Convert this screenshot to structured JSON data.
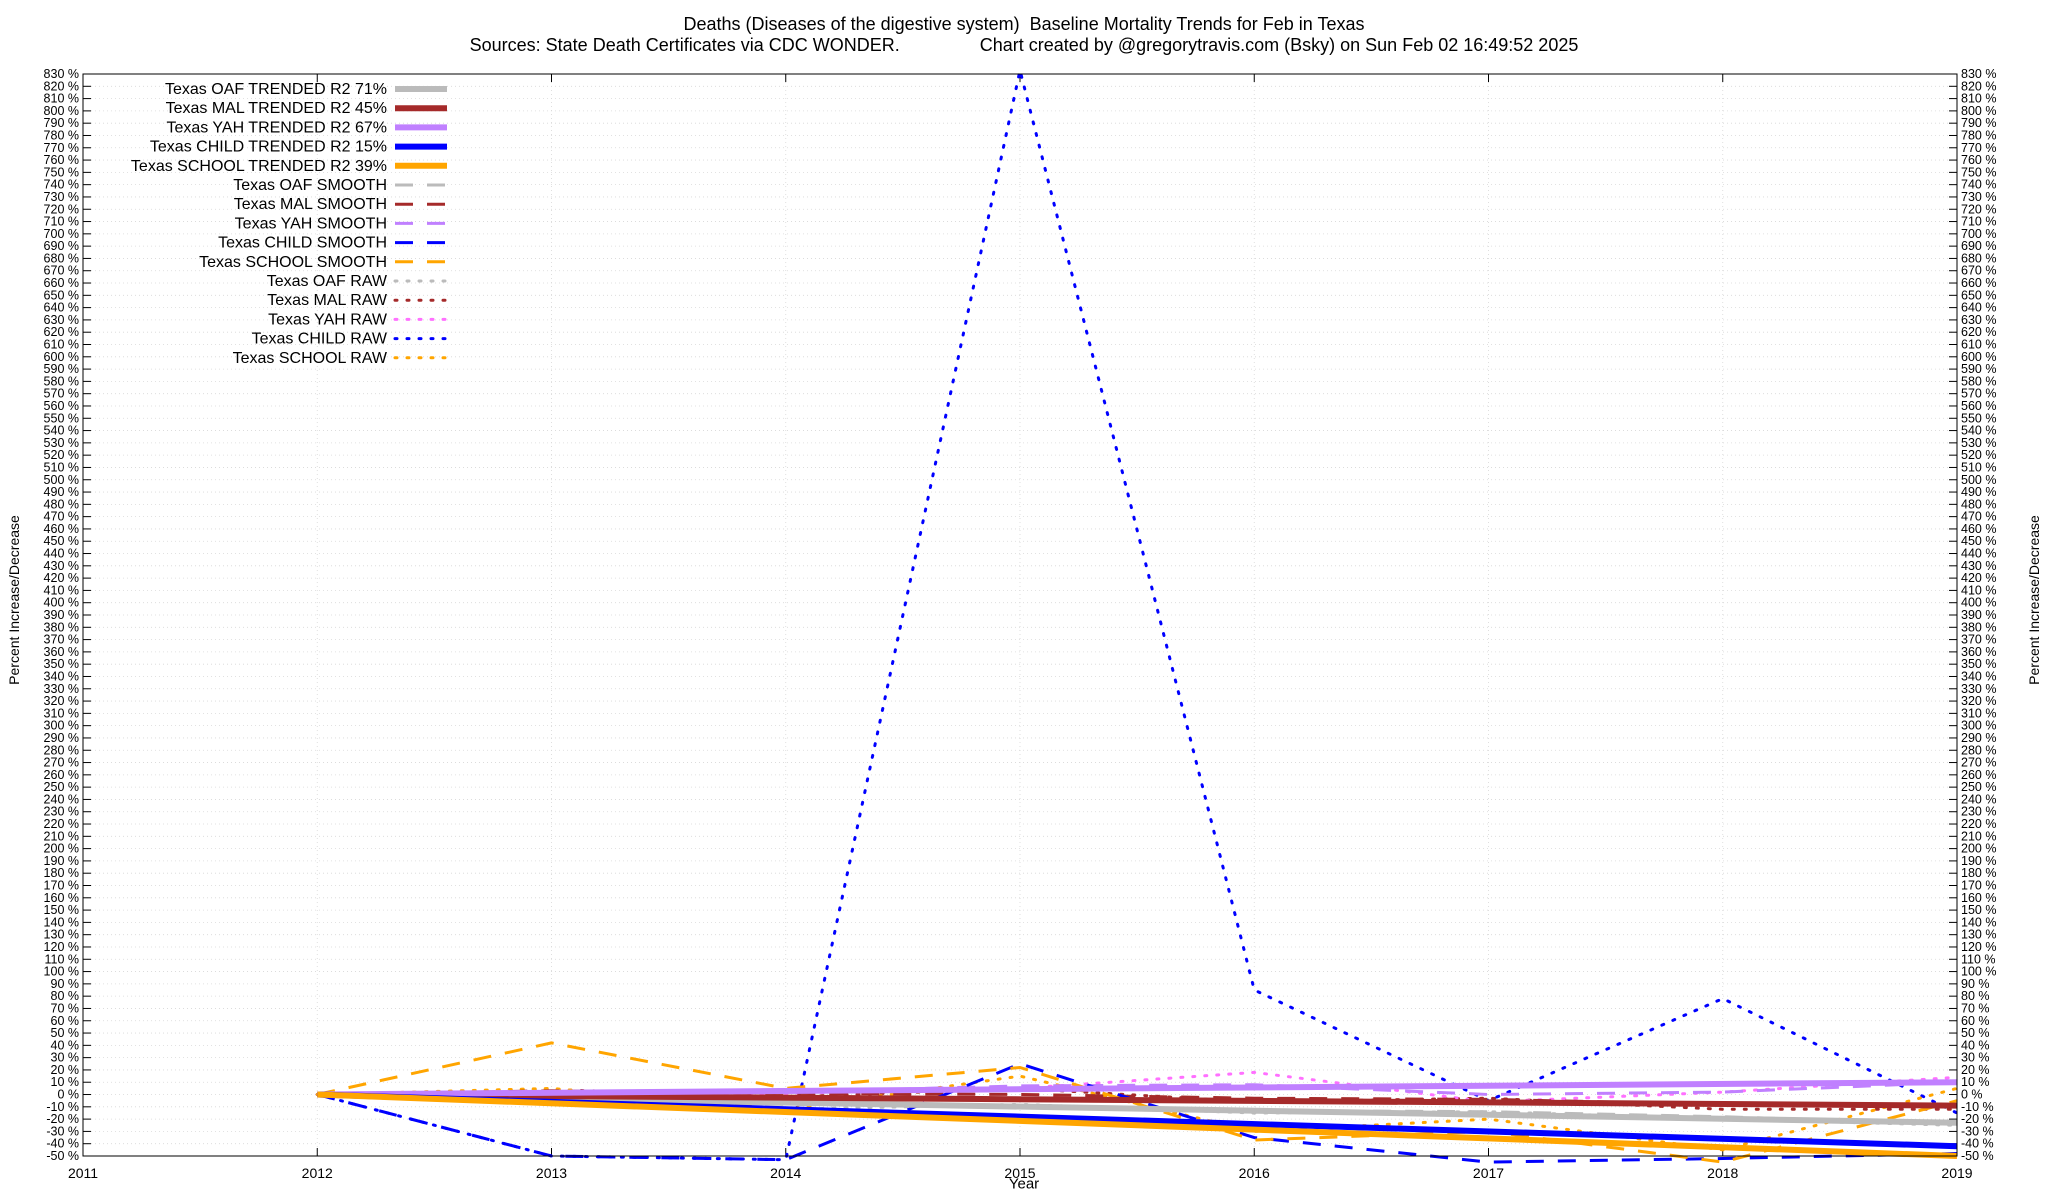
{
  "title": "Deaths (Diseases of the digestive system)  Baseline Mortality Trends for Feb in Texas",
  "subtitle": "Sources: State Death Certificates via CDC WONDER.                Chart created by @gregorytravis.com (Bsky) on Sun Feb 02 16:49:52 2025",
  "chart_data": {
    "type": "line",
    "title": "Deaths (Diseases of the digestive system)  Baseline Mortality Trends for Feb in Texas",
    "xlabel": "Year",
    "ylabel": "Percent Increase/Decrease",
    "y2label": "Percent Increase/Decrease",
    "xlim": [
      2011,
      2019
    ],
    "ylim": [
      -50,
      830
    ],
    "x_ticks": [
      2011,
      2012,
      2013,
      2014,
      2015,
      2016,
      2017,
      2018,
      2019
    ],
    "y_tick_step": 10,
    "y_tick_suffix": " %",
    "grid": true,
    "legend_position": "top-left",
    "series": [
      {
        "name": "Texas OAF TRENDED R2  71%",
        "style": "solid",
        "color": "#bbbbbb",
        "x": [
          2012,
          2019
        ],
        "y": [
          0,
          -23
        ]
      },
      {
        "name": "Texas MAL TRENDED R2  45%",
        "style": "solid",
        "color": "#a52a2a",
        "x": [
          2012,
          2019
        ],
        "y": [
          0,
          -9
        ]
      },
      {
        "name": "Texas YAH TRENDED R2  67%",
        "style": "solid",
        "color": "#c080ff",
        "x": [
          2012,
          2019
        ],
        "y": [
          0,
          10
        ]
      },
      {
        "name": "Texas CHILD TRENDED R2  15%",
        "style": "solid",
        "color": "#0000ff",
        "x": [
          2012,
          2019
        ],
        "y": [
          0,
          -42
        ]
      },
      {
        "name": "Texas SCHOOL TRENDED R2  39%",
        "style": "solid",
        "color": "#ffa500",
        "x": [
          2012,
          2019
        ],
        "y": [
          0,
          -50
        ]
      },
      {
        "name": "Texas OAF SMOOTH",
        "style": "dash",
        "color": "#bbbbbb",
        "x": [
          2012,
          2013,
          2014,
          2015,
          2016,
          2017,
          2018,
          2019
        ],
        "y": [
          0,
          -3,
          -8,
          -10,
          -13,
          -14,
          -18,
          -24
        ]
      },
      {
        "name": "Texas MAL SMOOTH",
        "style": "dash",
        "color": "#a52a2a",
        "x": [
          2012,
          2013,
          2014,
          2015,
          2016,
          2017,
          2018,
          2019
        ],
        "y": [
          0,
          3,
          1,
          0,
          -3,
          -4,
          -8,
          -10
        ]
      },
      {
        "name": "Texas YAH SMOOTH",
        "style": "dash",
        "color": "#c080ff",
        "x": [
          2012,
          2013,
          2014,
          2015,
          2016,
          2017,
          2018,
          2019
        ],
        "y": [
          0,
          1,
          2,
          7,
          8,
          0,
          2,
          10
        ]
      },
      {
        "name": "Texas CHILD SMOOTH",
        "style": "dash",
        "color": "#0000ff",
        "x": [
          2012,
          2013,
          2014,
          2015,
          2016,
          2017,
          2018,
          2019
        ],
        "y": [
          0,
          -50,
          -53,
          25,
          -35,
          -55,
          -52,
          -48
        ]
      },
      {
        "name": "Texas SCHOOL SMOOTH",
        "style": "dash",
        "color": "#ffa500",
        "x": [
          2012,
          2013,
          2014,
          2015,
          2016,
          2017,
          2018,
          2019
        ],
        "y": [
          0,
          42,
          5,
          22,
          -37,
          -30,
          -55,
          -5
        ]
      },
      {
        "name": "Texas OAF RAW",
        "style": "dot",
        "color": "#bbbbbb",
        "x": [
          2012,
          2013,
          2014,
          2015,
          2016,
          2017,
          2018,
          2019
        ],
        "y": [
          0,
          -5,
          -12,
          -8,
          -15,
          -14,
          -20,
          -25
        ]
      },
      {
        "name": "Texas MAL RAW",
        "style": "dot",
        "color": "#a52a2a",
        "x": [
          2012,
          2013,
          2014,
          2015,
          2016,
          2017,
          2018,
          2019
        ],
        "y": [
          0,
          4,
          -2,
          5,
          -6,
          -3,
          -12,
          -12
        ]
      },
      {
        "name": "Texas YAH RAW",
        "style": "dot",
        "color": "#ff70ff",
        "x": [
          2012,
          2013,
          2014,
          2015,
          2016,
          2017,
          2018,
          2019
        ],
        "y": [
          0,
          -2,
          1,
          5,
          18,
          -6,
          2,
          14
        ]
      },
      {
        "name": "Texas CHILD RAW",
        "style": "dot",
        "color": "#0000ff",
        "x": [
          2012,
          2013,
          2014,
          2015,
          2016,
          2017,
          2018,
          2019
        ],
        "y": [
          0,
          -50,
          -53,
          833,
          85,
          -5,
          78,
          -15
        ]
      },
      {
        "name": "Texas SCHOOL RAW",
        "style": "dot",
        "color": "#ffa500",
        "x": [
          2012,
          2013,
          2014,
          2015,
          2016,
          2017,
          2018,
          2019
        ],
        "y": [
          0,
          5,
          -12,
          15,
          -30,
          -20,
          -45,
          5
        ]
      }
    ]
  }
}
